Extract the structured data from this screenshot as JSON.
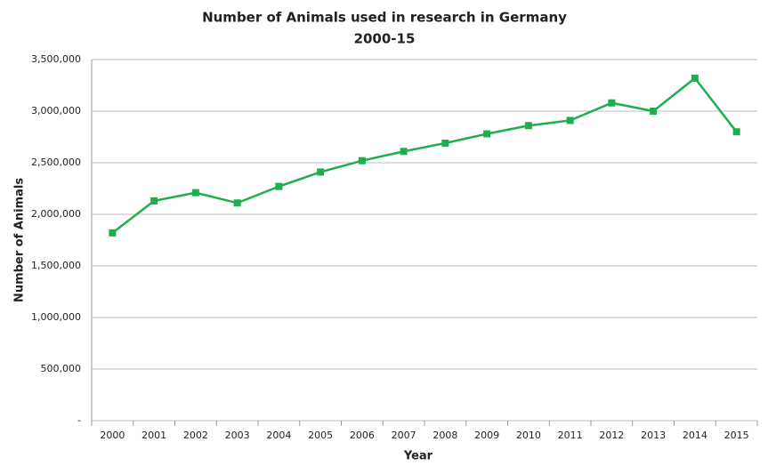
{
  "chart_data": {
    "type": "line",
    "title": "Number of Animals used in research in Germany",
    "subtitle": "2000-15",
    "x_label": "Year",
    "y_label": "Number of Animals",
    "categories": [
      "2000",
      "2001",
      "2002",
      "2003",
      "2004",
      "2005",
      "2006",
      "2007",
      "2008",
      "2009",
      "2010",
      "2011",
      "2012",
      "2013",
      "2014",
      "2015"
    ],
    "series": [
      {
        "name": "Number of Animals",
        "color": "#1fae4f",
        "values": [
          1820000,
          2130000,
          2210000,
          2110000,
          2270000,
          2410000,
          2520000,
          2610000,
          2690000,
          2780000,
          2860000,
          2910000,
          3080000,
          3000000,
          3320000,
          2800000
        ]
      }
    ],
    "ylim": [
      0,
      3500000
    ],
    "yticks": [
      {
        "value": 0,
        "label": "-"
      },
      {
        "value": 500000,
        "label": "500,000"
      },
      {
        "value": 1000000,
        "label": "1,000,000"
      },
      {
        "value": 1500000,
        "label": "1,500,000"
      },
      {
        "value": 2000000,
        "label": "2,000,000"
      },
      {
        "value": 2500000,
        "label": "2,500,000"
      },
      {
        "value": 3000000,
        "label": "3,000,000"
      },
      {
        "value": 3500000,
        "label": "3,500,000"
      }
    ],
    "grid": true
  }
}
